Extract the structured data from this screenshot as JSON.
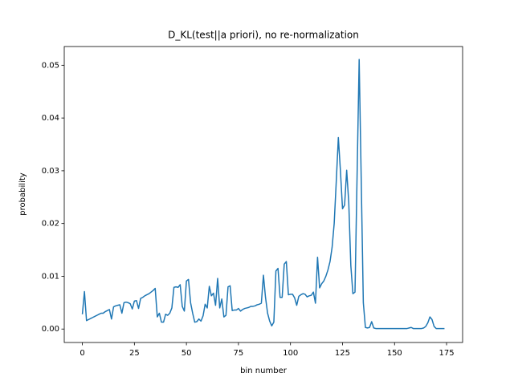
{
  "chart_data": {
    "type": "line",
    "title": "D_KL(test||a priori), no re-normalization",
    "xlabel": "bin number",
    "ylabel": "probability",
    "x": [
      0,
      1,
      2,
      3,
      4,
      5,
      6,
      7,
      8,
      9,
      10,
      11,
      12,
      13,
      14,
      15,
      16,
      17,
      18,
      19,
      20,
      21,
      22,
      23,
      24,
      25,
      26,
      27,
      28,
      29,
      30,
      31,
      32,
      33,
      34,
      35,
      36,
      37,
      38,
      39,
      40,
      41,
      42,
      43,
      44,
      45,
      46,
      47,
      48,
      49,
      50,
      51,
      52,
      53,
      54,
      55,
      56,
      57,
      58,
      59,
      60,
      61,
      62,
      63,
      64,
      65,
      66,
      67,
      68,
      69,
      70,
      71,
      72,
      73,
      74,
      75,
      76,
      77,
      78,
      79,
      80,
      81,
      82,
      83,
      84,
      85,
      86,
      87,
      88,
      89,
      90,
      91,
      92,
      93,
      94,
      95,
      96,
      97,
      98,
      99,
      100,
      101,
      102,
      103,
      104,
      105,
      106,
      107,
      108,
      109,
      110,
      111,
      112,
      113,
      114,
      115,
      116,
      117,
      118,
      119,
      120,
      121,
      122,
      123,
      124,
      125,
      126,
      127,
      128,
      129,
      130,
      131,
      132,
      133,
      134,
      135,
      136,
      137,
      138,
      139,
      140,
      141,
      142,
      143,
      144,
      145,
      146,
      147,
      148,
      149,
      150,
      151,
      152,
      153,
      154,
      155,
      156,
      157,
      158,
      159,
      160,
      161,
      162,
      163,
      164,
      165,
      166,
      167,
      168,
      169,
      170,
      171,
      172,
      173,
      174
    ],
    "series": [
      {
        "color": "#1f77b4",
        "values": [
          0.0028,
          0.0071,
          0.0016,
          0.0018,
          0.002,
          0.0022,
          0.0024,
          0.0026,
          0.0028,
          0.003,
          0.003,
          0.0033,
          0.0035,
          0.0037,
          0.0019,
          0.0042,
          0.0044,
          0.0045,
          0.0046,
          0.003,
          0.005,
          0.0051,
          0.005,
          0.0048,
          0.0038,
          0.0053,
          0.0054,
          0.0039,
          0.0058,
          0.006,
          0.0063,
          0.0065,
          0.0067,
          0.007,
          0.0073,
          0.0077,
          0.0023,
          0.003,
          0.0013,
          0.0013,
          0.0028,
          0.0026,
          0.003,
          0.004,
          0.0079,
          0.008,
          0.0079,
          0.0084,
          0.0043,
          0.0034,
          0.0091,
          0.0094,
          0.005,
          0.003,
          0.0013,
          0.0014,
          0.0019,
          0.0015,
          0.0025,
          0.0047,
          0.004,
          0.0081,
          0.0063,
          0.0068,
          0.0045,
          0.0096,
          0.004,
          0.0057,
          0.0023,
          0.0026,
          0.008,
          0.0082,
          0.0035,
          0.0036,
          0.0036,
          0.0039,
          0.0034,
          0.0037,
          0.0039,
          0.004,
          0.0041,
          0.0043,
          0.0043,
          0.0044,
          0.0046,
          0.0047,
          0.0049,
          0.0102,
          0.006,
          0.003,
          0.0015,
          0.0006,
          0.0013,
          0.011,
          0.0115,
          0.006,
          0.006,
          0.0123,
          0.0128,
          0.0065,
          0.0066,
          0.0066,
          0.0059,
          0.0045,
          0.0062,
          0.0065,
          0.0067,
          0.0066,
          0.0061,
          0.0063,
          0.0064,
          0.007,
          0.0049,
          0.0136,
          0.0078,
          0.0086,
          0.0091,
          0.01,
          0.0112,
          0.0128,
          0.0155,
          0.02,
          0.028,
          0.0363,
          0.03,
          0.0228,
          0.0235,
          0.0301,
          0.024,
          0.012,
          0.0067,
          0.007,
          0.029,
          0.0511,
          0.028,
          0.005,
          0.0003,
          0.0002,
          0.0003,
          0.0014,
          0.0002,
          0.0001,
          0.0001,
          0.0001,
          0.0001,
          0.0001,
          0.0001,
          0.0001,
          0.0001,
          0.0001,
          0.0001,
          0.0001,
          0.0001,
          0.0001,
          0.0001,
          0.0001,
          0.0001,
          0.0002,
          0.0003,
          0.0001,
          0.0001,
          0.0001,
          0.0001,
          0.0001,
          0.0002,
          0.0005,
          0.0012,
          0.0023,
          0.0018,
          0.0005,
          0.0001,
          0.0001,
          0.0001,
          0.0001,
          0.0001
        ]
      }
    ],
    "xlim": [
      -8.7,
      182.7
    ],
    "ylim": [
      -0.00255,
      0.05355
    ],
    "xticks": [
      0,
      25,
      50,
      75,
      100,
      125,
      150,
      175
    ],
    "yticks": [
      {
        "value": 0,
        "label": "0.00"
      },
      {
        "value": 0.01,
        "label": "0.01"
      },
      {
        "value": 0.02,
        "label": "0.02"
      },
      {
        "value": 0.03,
        "label": "0.03"
      },
      {
        "value": 0.04,
        "label": "0.04"
      },
      {
        "value": 0.05,
        "label": "0.05"
      }
    ],
    "grid": false
  }
}
